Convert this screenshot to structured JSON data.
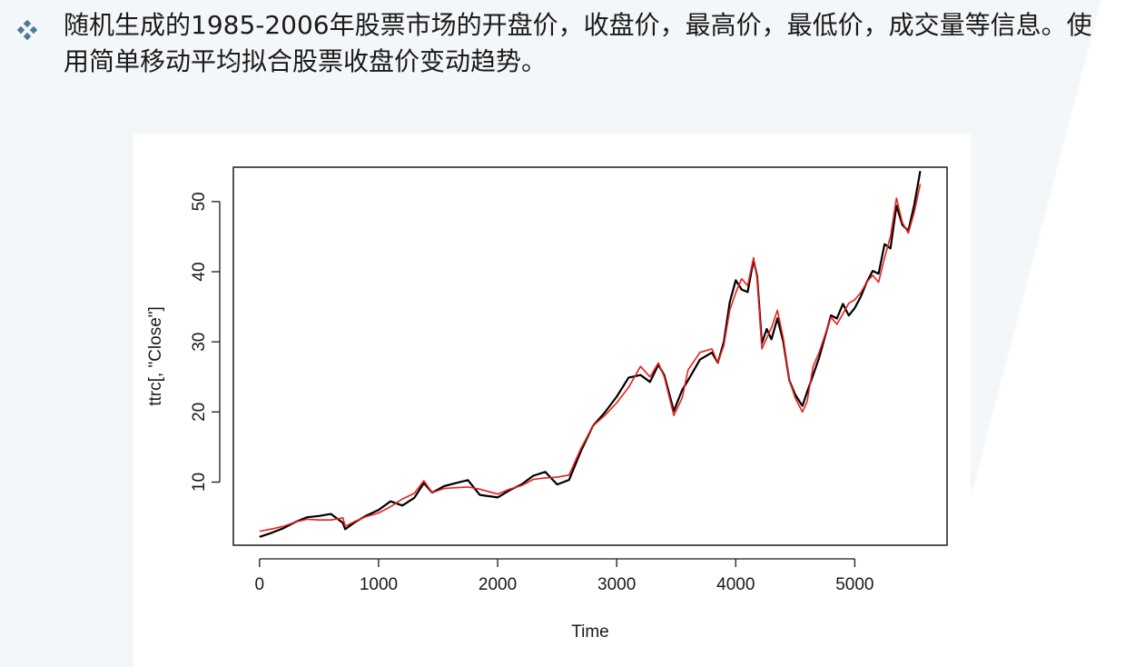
{
  "slide": {
    "heading": "随机生成的1985-2006年股票市场的开盘价，收盘价，最高价，最低价，成交量等信息。使用简单移动平均拟合股票收盘价变动趋势。",
    "bullet_icon": "diamond-bullet-icon",
    "accent_color": "#4a7d96",
    "background_color": "#f4f7f9"
  },
  "chart_data": {
    "type": "line",
    "title": "",
    "xlabel": "Time",
    "ylabel": "ttrc[, \"Close\"]",
    "xlim": [
      -220,
      5775
    ],
    "ylim": [
      1.0,
      54.9
    ],
    "xticks": [
      0,
      1000,
      2000,
      3000,
      4000,
      5000
    ],
    "yticks": [
      10,
      20,
      30,
      40,
      50
    ],
    "grid": false,
    "legend": "none",
    "series": [
      {
        "color": "#000000",
        "x": [
          0,
          100,
          200,
          300,
          400,
          500,
          600,
          700,
          720,
          800,
          900,
          1000,
          1100,
          1200,
          1300,
          1380,
          1450,
          1550,
          1650,
          1750,
          1850,
          2000,
          2100,
          2200,
          2300,
          2400,
          2500,
          2600,
          2700,
          2800,
          2900,
          3000,
          3100,
          3200,
          3280,
          3350,
          3400,
          3480,
          3550,
          3600,
          3700,
          3800,
          3850,
          3900,
          3950,
          4000,
          4050,
          4100,
          4150,
          4180,
          4220,
          4260,
          4300,
          4350,
          4400,
          4450,
          4500,
          4560,
          4600,
          4650,
          4700,
          4750,
          4800,
          4850,
          4900,
          4950,
          5000,
          5050,
          5100,
          5150,
          5200,
          5250,
          5300,
          5350,
          5400,
          5450,
          5500,
          5550
        ],
        "values": [
          3.0,
          3.3,
          3.7,
          4.3,
          4.7,
          4.6,
          4.6,
          4.9,
          3.7,
          4.4,
          5.1,
          5.6,
          6.5,
          7.6,
          8.4,
          10.2,
          8.5,
          9.1,
          9.2,
          9.3,
          9.0,
          8.3,
          9.0,
          9.5,
          10.4,
          10.6,
          10.7,
          11.0,
          14.8,
          18.0,
          19.5,
          21.3,
          23.5,
          26.5,
          25.0,
          27.0,
          25.0,
          19.5,
          22.0,
          26.0,
          28.5,
          29.0,
          27.0,
          29.5,
          34.5,
          37.0,
          39.0,
          38.0,
          42.0,
          39.0,
          29.0,
          30.5,
          32.0,
          34.5,
          30.5,
          24.5,
          22.0,
          20.0,
          21.5,
          26.5,
          28.5,
          31.0,
          33.5,
          32.5,
          34.0,
          35.5,
          36.0,
          37.0,
          38.5,
          39.5,
          38.5,
          42.0,
          45.0,
          50.5,
          47.0,
          45.5,
          48.5,
          52.5
        ]
      },
      {
        "color": "#e8201d",
        "x": [
          0,
          100,
          200,
          300,
          400,
          500,
          600,
          700,
          720,
          800,
          900,
          1000,
          1100,
          1200,
          1300,
          1380,
          1450,
          1550,
          1650,
          1750,
          1850,
          2000,
          2100,
          2200,
          2300,
          2400,
          2500,
          2600,
          2700,
          2800,
          2900,
          3000,
          3100,
          3200,
          3280,
          3350,
          3400,
          3480,
          3550,
          3600,
          3700,
          3800,
          3850,
          3900,
          3950,
          4000,
          4050,
          4100,
          4150,
          4180,
          4220,
          4260,
          4300,
          4350,
          4400,
          4450,
          4500,
          4560,
          4600,
          4650,
          4700,
          4750,
          4800,
          4850,
          4900,
          4950,
          5000,
          5050,
          5100,
          5150,
          5200,
          5250,
          5300,
          5350,
          5400,
          5450,
          5500,
          5550
        ],
        "values": [
          3.0,
          3.3,
          3.7,
          4.3,
          4.7,
          4.6,
          4.6,
          4.9,
          3.7,
          4.4,
          5.1,
          5.6,
          6.5,
          7.6,
          8.4,
          10.2,
          8.5,
          9.1,
          9.2,
          9.3,
          9.0,
          8.3,
          9.0,
          9.5,
          10.4,
          10.6,
          10.7,
          11.0,
          14.8,
          18.0,
          19.5,
          21.3,
          23.5,
          26.5,
          25.0,
          27.0,
          25.0,
          19.5,
          22.0,
          26.0,
          28.5,
          29.0,
          27.0,
          29.5,
          34.5,
          37.0,
          39.0,
          38.0,
          42.0,
          39.0,
          29.0,
          30.5,
          32.0,
          34.5,
          30.5,
          24.5,
          22.0,
          20.0,
          21.5,
          26.5,
          28.5,
          31.0,
          33.5,
          32.5,
          34.0,
          35.5,
          36.0,
          37.0,
          38.5,
          39.5,
          38.5,
          42.0,
          45.0,
          50.5,
          47.0,
          45.5,
          48.5,
          52.5
        ]
      }
    ]
  }
}
